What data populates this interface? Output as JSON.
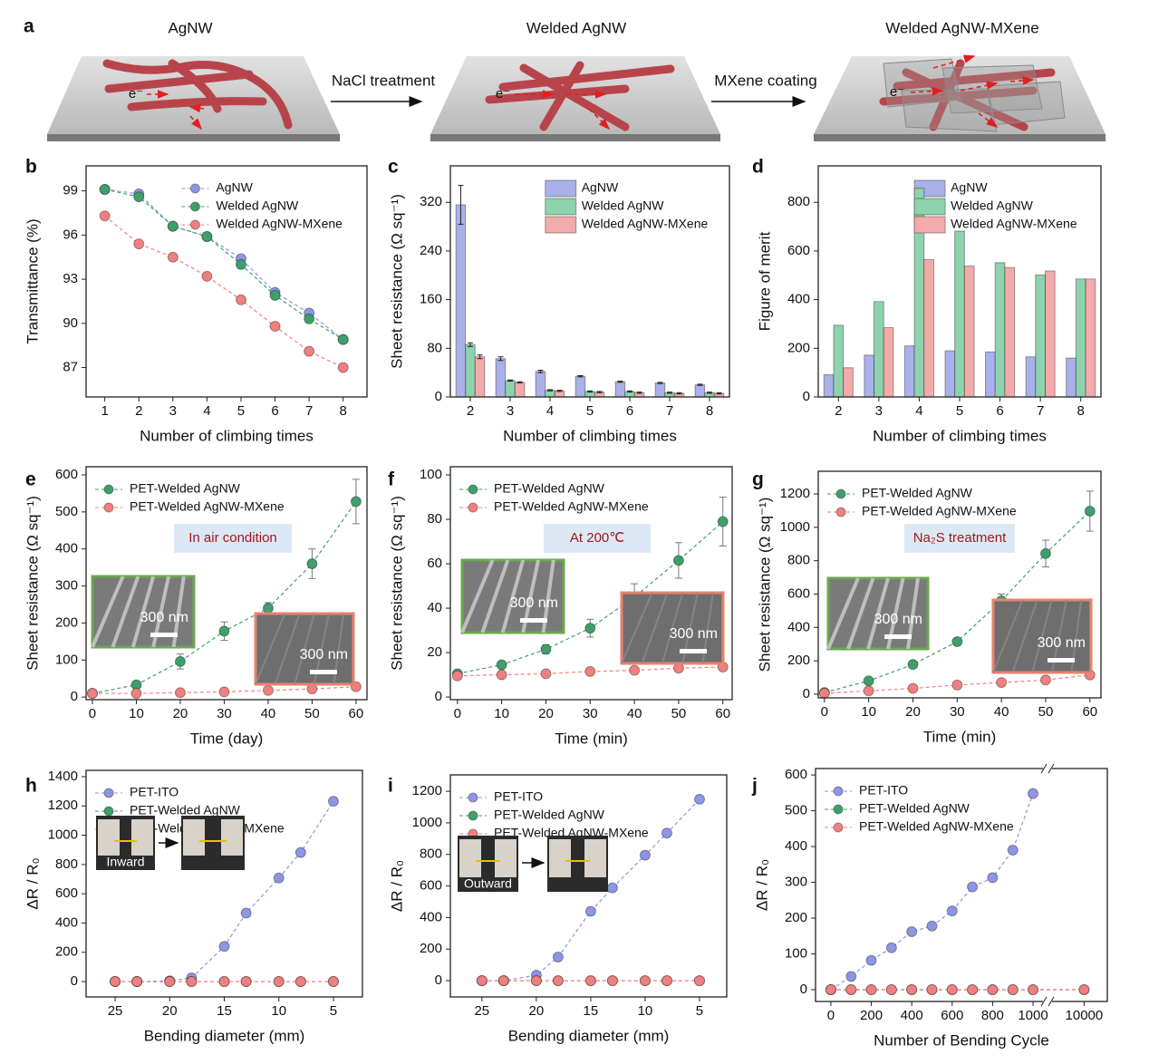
{
  "diagram": {
    "panel": "a",
    "stages": [
      "AgNW",
      "Welded AgNW",
      "Welded AgNW-MXene"
    ],
    "steps": [
      "NaCl treatment",
      "MXene coating"
    ],
    "electron": "e⁻"
  },
  "chart_data": [
    {
      "panel": "b",
      "type": "line",
      "x": [
        1,
        2,
        3,
        4,
        5,
        6,
        7,
        8
      ],
      "xlim": [
        0.45,
        8.7
      ],
      "xticks": [
        1,
        2,
        3,
        4,
        5,
        6,
        7,
        8
      ],
      "ylim": [
        85,
        100.7
      ],
      "yticks": [
        87,
        90,
        93,
        96,
        99
      ],
      "xlabel": "Number of climbing times",
      "ylabel": "Transmittance (%)",
      "legend": "upper center",
      "series": [
        {
          "name": "AgNW",
          "color": "#8c96e2",
          "values": [
            99.1,
            98.8,
            96.6,
            95.9,
            94.4,
            92.1,
            90.7,
            88.9
          ]
        },
        {
          "name": "Welded AgNW",
          "color": "#3f9f6c",
          "values": [
            99.1,
            98.6,
            96.6,
            95.9,
            94.0,
            91.9,
            90.3,
            88.9
          ]
        },
        {
          "name": "Welded AgNW-MXene",
          "color": "#f08080",
          "values": [
            97.3,
            95.4,
            94.5,
            93.2,
            91.6,
            89.8,
            88.1,
            87.0
          ]
        }
      ]
    },
    {
      "panel": "c",
      "type": "bar",
      "categories": [
        "2",
        "3",
        "4",
        "5",
        "6",
        "7",
        "8"
      ],
      "ylim": [
        0,
        380
      ],
      "yticks": [
        0,
        80,
        160,
        240,
        320
      ],
      "xlabel": "Number of climbing times",
      "ylabel": "Sheet resistance (Ω sq⁻¹)",
      "legend": "upper center",
      "series": [
        {
          "name": "AgNW",
          "color": "#aab0ea",
          "values": [
            316,
            63,
            42,
            34,
            25,
            23,
            20
          ],
          "errors": [
            32,
            3,
            2,
            1,
            1,
            1,
            1
          ]
        },
        {
          "name": "Welded AgNW",
          "color": "#8fd2ae",
          "values": [
            86,
            27,
            11,
            9,
            9,
            7,
            7
          ],
          "errors": [
            3,
            1,
            1,
            1,
            1,
            1,
            1
          ]
        },
        {
          "name": "Welded AgNW-MXene",
          "color": "#f3aaaa",
          "values": [
            66,
            24,
            10,
            8,
            7,
            6,
            6
          ],
          "errors": [
            3,
            1,
            1,
            1,
            1,
            1,
            1
          ]
        }
      ]
    },
    {
      "panel": "d",
      "type": "bar",
      "categories": [
        "2",
        "3",
        "4",
        "5",
        "6",
        "7",
        "8"
      ],
      "ylim": [
        0,
        950
      ],
      "yticks": [
        0,
        200,
        400,
        600,
        800
      ],
      "xlabel": "Number of climbing times",
      "ylabel": "Figure of merit",
      "legend": "upper center",
      "series": [
        {
          "name": "AgNW",
          "color": "#aab0ea",
          "values": [
            92,
            172,
            210,
            190,
            185,
            165,
            160
          ]
        },
        {
          "name": "Welded AgNW",
          "color": "#8fd2ae",
          "values": [
            295,
            392,
            858,
            682,
            552,
            502,
            485
          ]
        },
        {
          "name": "Welded AgNW-MXene",
          "color": "#f3aaaa",
          "values": [
            120,
            285,
            565,
            538,
            532,
            518,
            485
          ]
        }
      ]
    },
    {
      "panel": "e",
      "type": "line",
      "x": [
        0,
        10,
        20,
        30,
        40,
        50,
        60
      ],
      "xlim": [
        -1.44,
        62.5
      ],
      "xticks": [
        0,
        10,
        20,
        30,
        40,
        50,
        60
      ],
      "ylim": [
        -7,
        622
      ],
      "yticks": [
        0,
        100,
        200,
        300,
        400,
        500,
        600
      ],
      "xlabel": "Time (day)",
      "ylabel": "Sheet resistance (Ω sq⁻¹)",
      "legend": "upper left",
      "annotation": "In air condition",
      "inset_labels": [
        "300 nm",
        "300 nm"
      ],
      "series": [
        {
          "name": "PET-Welded AgNW",
          "color": "#3f9f6c",
          "values": [
            10,
            33,
            96,
            178,
            240,
            360,
            528
          ],
          "errors": [
            0,
            5,
            20,
            25,
            15,
            40,
            60
          ]
        },
        {
          "name": "PET-Welded AgNW-MXene",
          "color": "#f08080",
          "values": [
            10,
            10,
            12,
            14,
            18,
            22,
            28
          ]
        }
      ]
    },
    {
      "panel": "f",
      "type": "line",
      "x": [
        0,
        10,
        20,
        30,
        40,
        50,
        60
      ],
      "xlim": [
        -1.6,
        62.1
      ],
      "xticks": [
        0,
        10,
        20,
        30,
        40,
        50,
        60
      ],
      "ylim": [
        -1.2,
        103.7
      ],
      "yticks": [
        0,
        20,
        40,
        60,
        80,
        100
      ],
      "xlabel": "Time (min)",
      "ylabel": "Sheet resistance (Ω sq⁻¹)",
      "legend": "upper left",
      "annotation": "At 200℃",
      "inset_labels": [
        "300 nm",
        "300 nm"
      ],
      "series": [
        {
          "name": "PET-Welded AgNW",
          "color": "#3f9f6c",
          "values": [
            10.5,
            14.5,
            21.5,
            31,
            45,
            61.5,
            79
          ],
          "errors": [
            0,
            1,
            2,
            4,
            6,
            8,
            11
          ]
        },
        {
          "name": "PET-Welded AgNW-MXene",
          "color": "#f08080",
          "values": [
            9.5,
            10,
            10.5,
            11.5,
            12,
            13,
            13.5
          ]
        }
      ]
    },
    {
      "panel": "g",
      "type": "line",
      "x": [
        0,
        10,
        20,
        30,
        40,
        50,
        60
      ],
      "xlim": [
        -1.4,
        62.5
      ],
      "xticks": [
        0,
        10,
        20,
        30,
        40,
        50,
        60
      ],
      "ylim": [
        -22,
        1336
      ],
      "yticks": [
        0,
        200,
        400,
        600,
        800,
        1000,
        1200
      ],
      "xlabel": "Time (min)",
      "ylabel": "Sheet resistance (Ω sq⁻¹)",
      "legend": "upper left",
      "annotation": "Na₂S treatment",
      "inset_labels": [
        "300 nm",
        "300 nm"
      ],
      "series": [
        {
          "name": "PET-Welded AgNW",
          "color": "#3f9f6c",
          "values": [
            10,
            80,
            178,
            315,
            560,
            843,
            1097
          ],
          "errors": [
            0,
            10,
            15,
            20,
            40,
            80,
            120
          ]
        },
        {
          "name": "PET-Welded AgNW-MXene",
          "color": "#f08080",
          "values": [
            5,
            20,
            35,
            55,
            70,
            85,
            115
          ]
        }
      ]
    },
    {
      "panel": "h",
      "type": "line",
      "x": [
        25,
        23,
        20,
        18,
        15,
        13,
        10,
        8,
        5
      ],
      "xlim": [
        27.66,
        2.34
      ],
      "xticks": [
        25,
        20,
        15,
        10,
        5
      ],
      "ylim": [
        -105,
        1443
      ],
      "yticks": [
        0,
        200,
        400,
        600,
        800,
        1000,
        1200,
        1400
      ],
      "xlabel": "Bending diameter (mm)",
      "ylabel": "ΔR / R₀",
      "legend": "upper left",
      "inset_labels": [
        "Inward"
      ],
      "series": [
        {
          "name": "PET-ITO",
          "color": "#8c96e2",
          "values": [
            0,
            0,
            5,
            25,
            240,
            468,
            708,
            882,
            1232
          ]
        },
        {
          "name": "PET-Welded AgNW",
          "color": "#3f9f6c",
          "values": [
            0,
            0,
            0,
            0,
            0,
            0,
            0,
            0,
            0
          ]
        },
        {
          "name": "PET-Welded AgNW-MXene",
          "color": "#f08080",
          "values": [
            0,
            0,
            0,
            0,
            0,
            0,
            0,
            0,
            0
          ]
        }
      ]
    },
    {
      "panel": "i",
      "type": "line",
      "x": [
        25,
        23,
        20,
        18,
        15,
        13,
        10,
        8,
        5
      ],
      "xlim": [
        27.9,
        2.5
      ],
      "xticks": [
        25,
        20,
        15,
        10,
        5
      ],
      "ylim": [
        -103,
        1304
      ],
      "yticks": [
        0,
        200,
        400,
        600,
        800,
        1000,
        1200
      ],
      "xlabel": "Bending diameter (mm)",
      "ylabel": "ΔR / R₀",
      "legend": "upper left",
      "inset_labels": [
        "Outward"
      ],
      "series": [
        {
          "name": "PET-ITO",
          "color": "#8c96e2",
          "values": [
            0,
            0,
            35,
            150,
            440,
            588,
            795,
            935,
            1150
          ]
        },
        {
          "name": "PET-Welded AgNW",
          "color": "#3f9f6c",
          "values": [
            0,
            0,
            0,
            0,
            0,
            0,
            0,
            0,
            0
          ]
        },
        {
          "name": "PET-Welded AgNW-MXene",
          "color": "#f08080",
          "values": [
            0,
            0,
            0,
            0,
            0,
            0,
            0,
            0,
            0
          ]
        }
      ]
    },
    {
      "panel": "j",
      "type": "line",
      "xlim": [
        -76,
        10036
      ],
      "xbreak": [
        1050,
        9950
      ],
      "xticks": [
        0,
        200,
        400,
        600,
        800,
        1000,
        10000
      ],
      "ylim": [
        -33,
        618
      ],
      "yticks": [
        0,
        100,
        200,
        300,
        400,
        500,
        600
      ],
      "xlabel": "Number of Bending Cycle",
      "ylabel": "ΔR / R₀",
      "legend": "upper left",
      "series": [
        {
          "name": "PET-ITO",
          "color": "#8c96e2",
          "x": [
            0,
            100,
            200,
            300,
            400,
            500,
            600,
            700,
            800,
            900,
            1000
          ],
          "values": [
            0,
            37,
            82,
            117,
            162,
            178,
            220,
            287,
            313,
            390,
            548
          ]
        },
        {
          "name": "PET-Welded AgNW",
          "color": "#3f9f6c",
          "x": [
            0,
            100,
            200,
            300,
            400,
            500,
            600,
            700,
            800,
            900,
            1000,
            10000
          ],
          "values": [
            0,
            0,
            0,
            0,
            0,
            0,
            0,
            0,
            0,
            0,
            0,
            0
          ]
        },
        {
          "name": "PET-Welded AgNW-MXene",
          "color": "#f08080",
          "x": [
            0,
            100,
            200,
            300,
            400,
            500,
            600,
            700,
            800,
            900,
            1000,
            10000
          ],
          "values": [
            0,
            0,
            0,
            0,
            0,
            0,
            0,
            0,
            0,
            0,
            0,
            0
          ]
        }
      ]
    }
  ]
}
